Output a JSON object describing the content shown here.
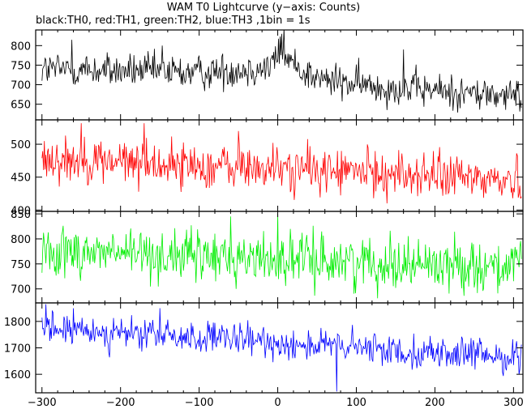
{
  "chart_data": {
    "type": "line",
    "title": "WAM T0 Lightcurve (y−axis: Counts)",
    "subtitle": "black:TH0, red:TH1, green:TH2, blue:TH3 ,1bin = 1s",
    "xlim": [
      -308,
      312
    ],
    "xticks": [
      -300,
      -200,
      -100,
      0,
      100,
      200,
      300
    ],
    "x_tick_labels": [
      "−300",
      "−200",
      "−100",
      "0",
      "100",
      "200",
      "300"
    ],
    "bin_seconds": 1,
    "grid": false,
    "panels": [
      {
        "series": "TH0",
        "color": "#000000",
        "ylim": [
          610,
          840
        ],
        "yticks": [
          650,
          700,
          750,
          800
        ],
        "ytick_labels": [
          "650",
          "700",
          "750",
          "800"
        ],
        "trend": [
          [
            -300,
            740
          ],
          [
            -100,
            730
          ],
          [
            -10,
            745
          ],
          [
            5,
            790
          ],
          [
            15,
            760
          ],
          [
            50,
            715
          ],
          [
            100,
            700
          ],
          [
            300,
            670
          ]
        ],
        "noise": 28,
        "spikes": [
          [
            -262,
            815
          ],
          [
            8,
            845
          ],
          [
            5,
            830
          ],
          [
            -147,
            800
          ],
          [
            160,
            790
          ]
        ]
      },
      {
        "series": "TH1",
        "color": "#ff0000",
        "ylim": [
          398,
          537
        ],
        "yticks": [
          400,
          450,
          500
        ],
        "ytick_labels": [
          "400",
          "450",
          "500"
        ],
        "trend": [
          [
            -300,
            480
          ],
          [
            -100,
            467
          ],
          [
            100,
            458
          ],
          [
            300,
            445
          ]
        ],
        "noise": 22,
        "spikes": [
          [
            -250,
            532
          ],
          [
            -170,
            532
          ],
          [
            -50,
            520
          ]
        ]
      },
      {
        "series": "TH2",
        "color": "#00ee00",
        "ylim": [
          672,
          855
        ],
        "yticks": [
          700,
          750,
          800,
          850
        ],
        "ytick_labels": [
          "700",
          "750",
          "800",
          "850"
        ],
        "trend": [
          [
            -300,
            778
          ],
          [
            -100,
            765
          ],
          [
            100,
            755
          ],
          [
            300,
            745
          ]
        ],
        "noise": 32,
        "spikes": [
          [
            0,
            850
          ],
          [
            -60,
            845
          ]
        ]
      },
      {
        "series": "TH3",
        "color": "#0000ff",
        "ylim": [
          1530,
          1870
        ],
        "yticks": [
          1600,
          1700,
          1800
        ],
        "ytick_labels": [
          "1600",
          "1700",
          "1800"
        ],
        "trend": [
          [
            -300,
            1775
          ],
          [
            -150,
            1745
          ],
          [
            0,
            1720
          ],
          [
            150,
            1690
          ],
          [
            300,
            1665
          ]
        ],
        "noise": 38,
        "spikes": [
          [
            -295,
            1865
          ],
          [
            -150,
            1850
          ],
          [
            75,
            1535
          ]
        ]
      }
    ]
  }
}
